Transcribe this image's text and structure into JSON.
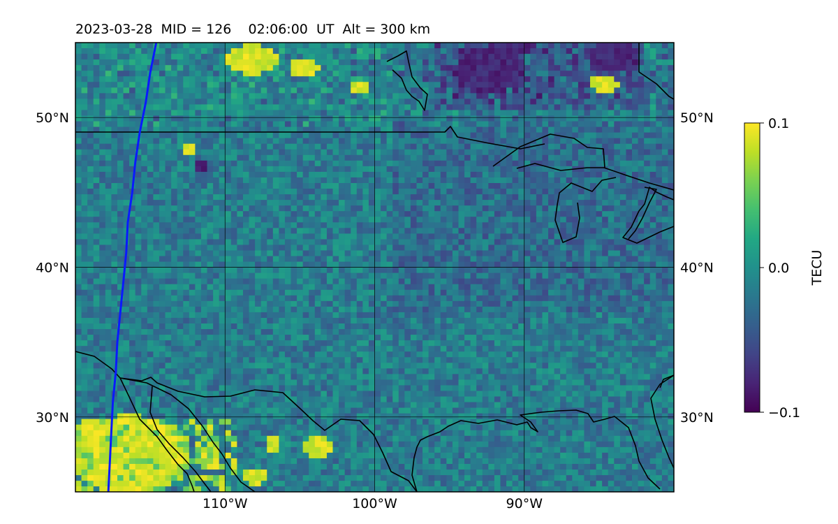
{
  "title": "2023-03-28  MID = 126    02:06:00  UT  Alt = 300 km",
  "map": {
    "lon_range": [
      -120,
      -80
    ],
    "lat_range": [
      25,
      55
    ],
    "lon_gridlines": [
      -110,
      -100,
      -90
    ],
    "lat_gridlines": [
      30,
      40,
      50
    ],
    "lon_tick_labels": [
      "110°W",
      "100°W",
      "90°W"
    ],
    "lat_tick_labels": [
      "30°N",
      "40°N",
      "50°N"
    ],
    "overlay_track": {
      "color": "#0a1aff",
      "points": [
        [
          -114.6,
          55
        ],
        [
          -115.0,
          53
        ],
        [
          -115.3,
          51
        ],
        [
          -115.7,
          49
        ],
        [
          -116.0,
          47
        ],
        [
          -116.2,
          45
        ],
        [
          -116.5,
          43
        ],
        [
          -116.6,
          41
        ],
        [
          -116.8,
          39
        ],
        [
          -117.0,
          37
        ],
        [
          -117.2,
          35
        ],
        [
          -117.3,
          33
        ],
        [
          -117.5,
          31
        ],
        [
          -117.6,
          29
        ],
        [
          -117.7,
          27
        ],
        [
          -117.8,
          25
        ]
      ]
    }
  },
  "colorbar": {
    "label": "TECU",
    "min": -0.1,
    "max": 0.1,
    "tick_labels": [
      "0.1",
      "0.0",
      "−0.1"
    ],
    "colormap": "viridis"
  },
  "colors": {
    "viridis": [
      "#440154",
      "#482475",
      "#414487",
      "#355f8d",
      "#2a788e",
      "#21918c",
      "#22a884",
      "#44bf70",
      "#7ad151",
      "#bddf26",
      "#fde725"
    ],
    "coastline": "#000000",
    "grid": "#000000"
  }
}
